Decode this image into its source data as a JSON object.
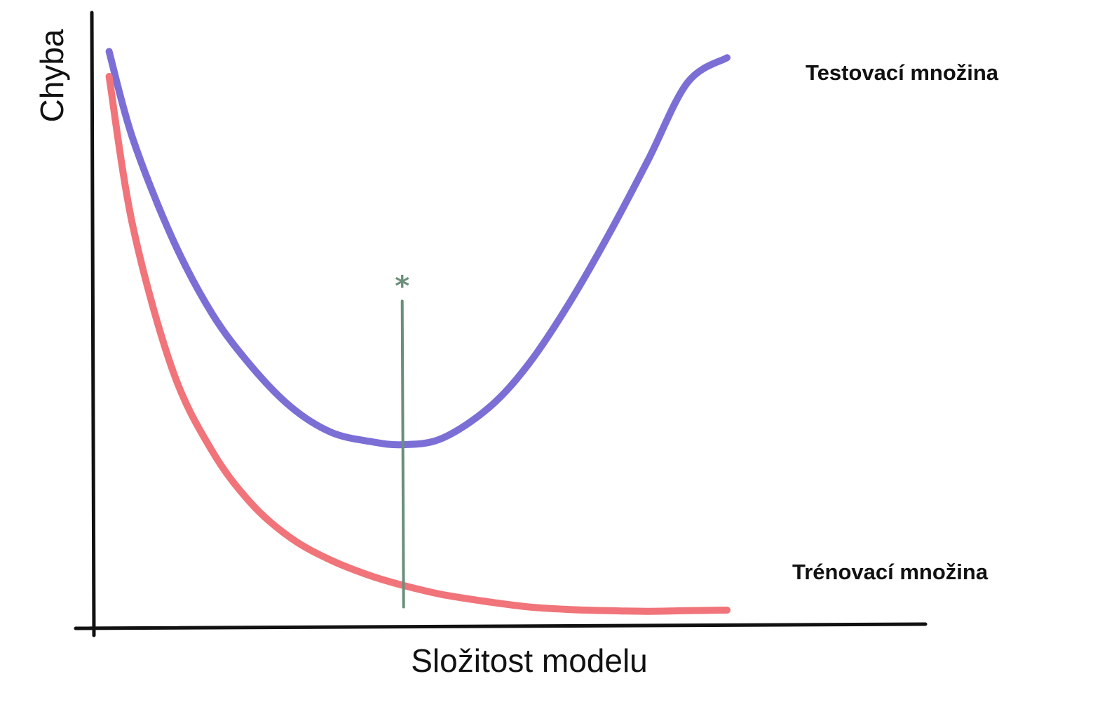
{
  "chart_data": {
    "type": "line",
    "title": "",
    "xlabel": "Složitost modelu",
    "ylabel": "Chyba",
    "xlim": [
      0,
      10
    ],
    "ylim": [
      0,
      10
    ],
    "grid": false,
    "tick_labels": "none",
    "x": [
      0.2,
      0.5,
      1,
      1.5,
      2,
      2.5,
      3,
      3.5,
      3.9,
      4.4,
      5,
      5.5,
      6,
      6.5,
      7,
      7.5,
      8
    ],
    "series": [
      {
        "name": "Testovací množina",
        "color": "#7B6FD6",
        "values": [
          9.4,
          8.0,
          6.4,
          5.2,
          4.35,
          3.7,
          3.3,
          3.15,
          3.1,
          3.2,
          3.7,
          4.4,
          5.35,
          6.45,
          7.65,
          8.9,
          9.3
        ]
      },
      {
        "name": "Trénovací množina",
        "color": "#F07479",
        "values": [
          9.0,
          6.6,
          4.3,
          3.0,
          2.15,
          1.6,
          1.25,
          1.0,
          0.85,
          0.7,
          0.58,
          0.5,
          0.46,
          0.44,
          0.43,
          0.44,
          0.45
        ]
      }
    ],
    "series_extent": [
      {
        "x": [
          0.2,
          8.3
        ]
      },
      {
        "x": [
          0.2,
          8.0
        ]
      }
    ],
    "annotations": [
      {
        "type": "vline",
        "x": 3.9,
        "y_from": 0.5,
        "y_to": 5.4,
        "label": "*",
        "color": "#6A8F7A"
      }
    ],
    "axis_color": "#111111"
  }
}
